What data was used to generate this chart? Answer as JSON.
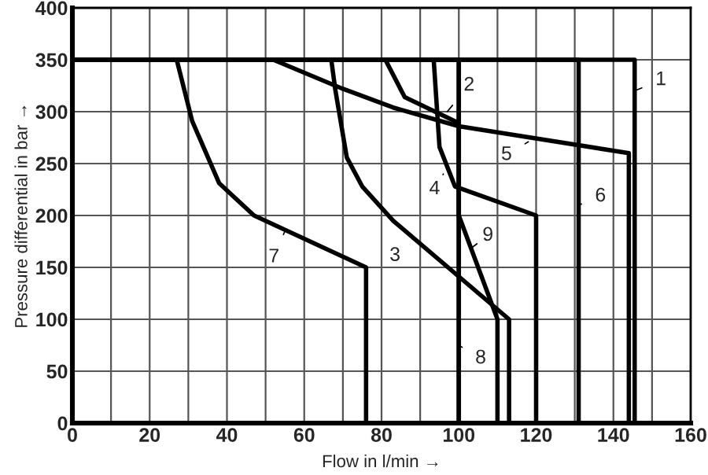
{
  "chart_data": {
    "type": "line",
    "xlabel": "Flow in l/min →",
    "ylabel": "Pressure differential in bar →",
    "xlim": [
      0,
      160
    ],
    "ylim": [
      0,
      400
    ],
    "xticks": [
      0,
      {
        "value": 10,
        "label": null
      },
      20,
      {
        "value": 30,
        "label": null
      },
      40,
      {
        "value": 50,
        "label": null
      },
      60,
      {
        "value": 70,
        "label": null
      },
      80,
      {
        "value": 90,
        "label": null
      },
      100,
      {
        "value": 110,
        "label": null
      },
      120,
      {
        "value": 130,
        "label": null
      },
      140,
      {
        "value": 150,
        "label": null
      },
      160
    ],
    "yticks": [
      0,
      50,
      100,
      150,
      200,
      250,
      300,
      350,
      400
    ],
    "grid": true,
    "legend": false,
    "marker": "none",
    "line_style": "solid",
    "series": [
      {
        "color": "#000000",
        "x": [
          0,
          145.5,
          145.5
        ],
        "values": [
          350,
          350,
          0
        ]
      },
      {
        "color": "#000000",
        "x": [
          0,
          81,
          86,
          100,
          100
        ],
        "values": [
          350,
          350,
          314,
          289,
          0
        ]
      },
      {
        "color": "#000000",
        "x": [
          0,
          67,
          68,
          71,
          75,
          83,
          113,
          113
        ],
        "values": [
          350,
          350,
          322,
          256,
          228,
          195,
          100,
          0
        ]
      },
      {
        "color": "#000000",
        "x": [
          0,
          93.5,
          95,
          99,
          120,
          120
        ],
        "values": [
          350,
          350,
          266,
          228,
          200,
          0
        ]
      },
      {
        "color": "#000000",
        "x": [
          0,
          52,
          70,
          83,
          100,
          144,
          144
        ],
        "values": [
          350,
          350,
          322,
          304,
          286,
          260,
          0
        ]
      },
      {
        "color": "#000000",
        "x": [
          0,
          131,
          131
        ],
        "values": [
          350,
          350,
          0
        ]
      },
      {
        "color": "#000000",
        "x": [
          0,
          27,
          31,
          38,
          47,
          76,
          76
        ],
        "values": [
          350,
          350,
          291,
          231,
          200,
          150,
          0
        ]
      },
      {
        "color": "#000000",
        "x": [
          0,
          100,
          100
        ],
        "values": [
          350,
          350,
          0
        ]
      },
      {
        "color": "#000000",
        "x": [
          0,
          100,
          100,
          110,
          110
        ],
        "values": [
          350,
          350,
          200,
          100,
          0
        ]
      }
    ],
    "annotations": [
      {
        "text": "1",
        "x": 145.5,
        "y": 320
      },
      {
        "text": "2",
        "x": 97,
        "y": 300
      },
      {
        "text": "3",
        "x": 88,
        "y": 178
      },
      {
        "text": "4",
        "x": 96,
        "y": 240
      },
      {
        "text": "5",
        "x": 118,
        "y": 271
      },
      {
        "text": "6",
        "x": 131,
        "y": 210
      },
      {
        "text": "7",
        "x": 55,
        "y": 185
      },
      {
        "text": "8",
        "x": 100,
        "y": 75
      },
      {
        "text": "9",
        "x": 103,
        "y": 168
      }
    ]
  }
}
